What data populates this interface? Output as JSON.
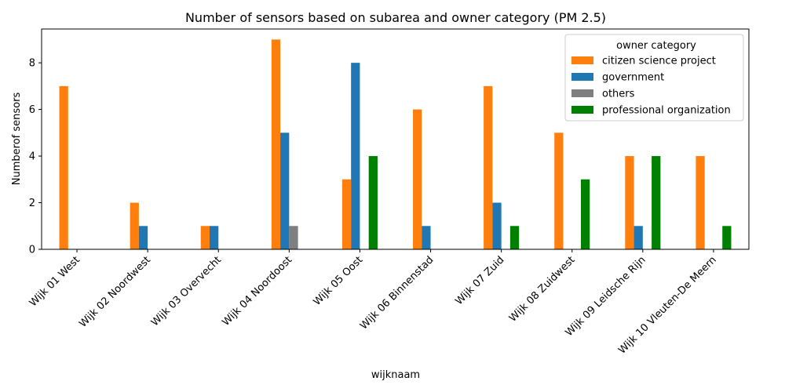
{
  "chart_data": {
    "type": "bar",
    "title": "Number of sensors based on subarea and owner category (PM 2.5)",
    "xlabel": "wijknaam",
    "ylabel": "Numberof sensors",
    "ylim": [
      0,
      9.45
    ],
    "yticks": [
      0,
      2,
      4,
      6,
      8
    ],
    "grid": false,
    "legend": {
      "title": "owner category",
      "placement": "top-right"
    },
    "categories": [
      "Wijk 01 West",
      "Wijk 02 Noordwest",
      "Wijk 03 Overvecht",
      "Wijk 04 Noordoost",
      "Wijk 05 Oost",
      "Wijk 06 Binnenstad",
      "Wijk 07 Zuid",
      "Wijk 08 Zuidwest",
      "Wijk 09 Leidsche Rijn",
      "Wijk 10 Vleuten-De Meern"
    ],
    "series": [
      {
        "name": "citizen science project",
        "color": "#ff7f0e",
        "values": [
          7,
          2,
          1,
          9,
          3,
          6,
          7,
          5,
          4,
          4
        ]
      },
      {
        "name": "government",
        "color": "#1f77b4",
        "values": [
          0,
          1,
          1,
          5,
          8,
          1,
          2,
          0,
          1,
          0
        ]
      },
      {
        "name": "others",
        "color": "#7f7f7f",
        "values": [
          0,
          0,
          0,
          1,
          0,
          0,
          0,
          0,
          0,
          0
        ]
      },
      {
        "name": "professional organization",
        "color": "#008000",
        "values": [
          0,
          0,
          0,
          0,
          4,
          0,
          1,
          3,
          4,
          1
        ]
      }
    ]
  }
}
